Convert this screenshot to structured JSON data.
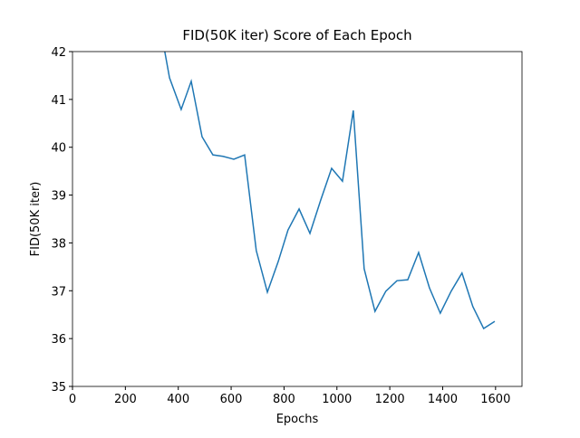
{
  "chart_data": {
    "type": "line",
    "title": "FID(50K iter) Score of Each Epoch",
    "x_label": "Epochs",
    "y_label": "FID(50K iter)",
    "x": [
      326,
      367,
      411,
      449,
      490,
      531,
      569,
      610,
      651,
      695,
      737,
      778,
      815,
      857,
      898,
      939,
      980,
      1021,
      1062,
      1103,
      1144,
      1185,
      1227,
      1268,
      1309,
      1350,
      1391,
      1432,
      1473,
      1514,
      1555,
      1597
    ],
    "series": [
      {
        "name": "FID",
        "color": "#1f77b4",
        "values": [
          42.7,
          41.45,
          40.79,
          41.38,
          40.22,
          39.84,
          39.81,
          39.75,
          39.84,
          37.84,
          36.97,
          37.61,
          38.27,
          38.71,
          38.2,
          38.9,
          39.56,
          39.29,
          40.77,
          37.46,
          36.57,
          36.99,
          37.21,
          37.23,
          37.8,
          37.06,
          36.53,
          36.99,
          37.37,
          36.67,
          36.21,
          36.36
        ]
      }
    ],
    "xlim": [
      0,
      1700
    ],
    "xticks": [
      0,
      200,
      400,
      600,
      800,
      1000,
      1200,
      1400,
      1600
    ],
    "ylim": [
      35,
      42
    ],
    "yticks": [
      35,
      36,
      37,
      38,
      39,
      40,
      41,
      42
    ]
  }
}
